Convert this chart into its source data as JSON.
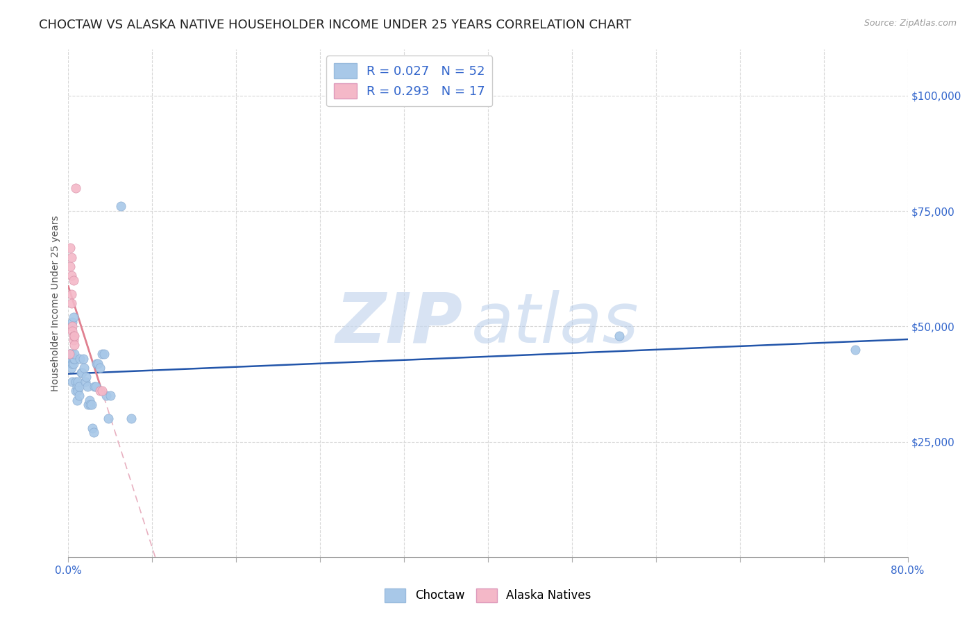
{
  "title": "CHOCTAW VS ALASKA NATIVE HOUSEHOLDER INCOME UNDER 25 YEARS CORRELATION CHART",
  "source": "Source: ZipAtlas.com",
  "ylabel": "Householder Income Under 25 years",
  "watermark_zip": "ZIP",
  "watermark_atlas": "atlas",
  "legend_entries": [
    {
      "label": "Choctaw",
      "color": "#a8c8e8",
      "R": 0.027,
      "N": 52
    },
    {
      "label": "Alaska Natives",
      "color": "#f4b8c8",
      "R": 0.293,
      "N": 17
    }
  ],
  "choctaw_color": "#a8c8e8",
  "alaska_color": "#f4b8c8",
  "choctaw_line_color": "#2255aa",
  "alaska_line_color": "#e08090",
  "alaska_dash_color": "#e8b0c0",
  "ylim": [
    0,
    110000
  ],
  "xlim": [
    0.0,
    0.8
  ],
  "background_color": "#ffffff",
  "grid_color": "#d8d8d8",
  "title_fontsize": 13,
  "choctaw_x": [
    0.001,
    0.002,
    0.002,
    0.002,
    0.003,
    0.003,
    0.003,
    0.003,
    0.004,
    0.004,
    0.004,
    0.005,
    0.005,
    0.005,
    0.006,
    0.006,
    0.007,
    0.007,
    0.008,
    0.008,
    0.009,
    0.009,
    0.01,
    0.01,
    0.011,
    0.012,
    0.013,
    0.014,
    0.015,
    0.016,
    0.017,
    0.018,
    0.019,
    0.02,
    0.021,
    0.022,
    0.023,
    0.024,
    0.025,
    0.026,
    0.027,
    0.028,
    0.03,
    0.032,
    0.034,
    0.036,
    0.038,
    0.04,
    0.05,
    0.06,
    0.75,
    0.525
  ],
  "choctaw_y": [
    44000,
    43000,
    44000,
    43000,
    42000,
    41000,
    43000,
    44000,
    38000,
    42000,
    51000,
    52000,
    42000,
    43000,
    43000,
    44000,
    36000,
    38000,
    37000,
    34000,
    36000,
    38000,
    35000,
    37000,
    43000,
    40000,
    40000,
    43000,
    41000,
    38000,
    39000,
    37000,
    33000,
    34000,
    33000,
    33000,
    28000,
    27000,
    37000,
    37000,
    42000,
    42000,
    41000,
    44000,
    44000,
    35000,
    30000,
    35000,
    76000,
    30000,
    45000,
    48000
  ],
  "alaska_x": [
    0.001,
    0.002,
    0.002,
    0.003,
    0.003,
    0.003,
    0.003,
    0.004,
    0.004,
    0.005,
    0.005,
    0.005,
    0.006,
    0.006,
    0.007,
    0.03,
    0.032
  ],
  "alaska_y": [
    44000,
    67000,
    63000,
    65000,
    61000,
    57000,
    55000,
    50000,
    49000,
    47000,
    48000,
    60000,
    46000,
    48000,
    80000,
    36000,
    36000
  ]
}
